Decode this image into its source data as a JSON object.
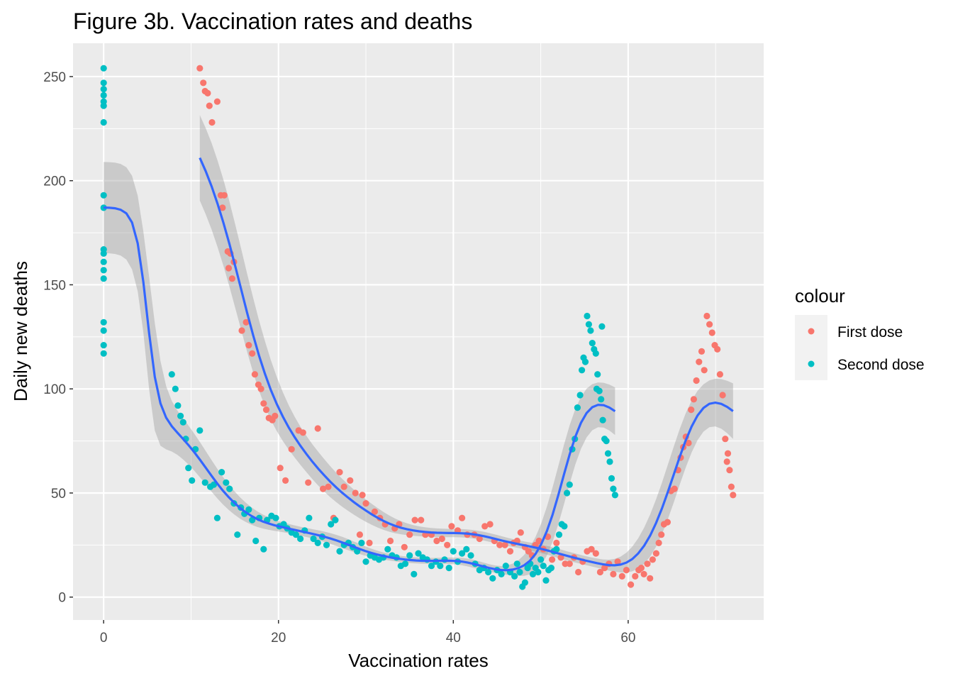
{
  "chart_data": {
    "type": "scatter",
    "title": "Figure 3b. Vaccination rates and deaths",
    "xlabel": "Vaccination rates",
    "ylabel": "Daily new deaths",
    "xlim": [
      -3.5,
      75.5
    ],
    "ylim": [
      -11,
      266
    ],
    "x_ticks": [
      0,
      20,
      40,
      60
    ],
    "y_ticks": [
      0,
      50,
      100,
      150,
      200,
      250
    ],
    "grid": true,
    "background": "#ebebeb",
    "legend": {
      "title": "colour",
      "placement": "right",
      "entries": [
        "First dose",
        "Second dose"
      ]
    },
    "series": [
      {
        "name": "First dose",
        "color": "#f8766d",
        "points": [
          [
            11.0,
            254
          ],
          [
            11.4,
            247
          ],
          [
            11.6,
            243
          ],
          [
            11.9,
            242
          ],
          [
            12.1,
            236
          ],
          [
            12.4,
            228
          ],
          [
            13.0,
            238
          ],
          [
            13.4,
            193
          ],
          [
            13.8,
            193
          ],
          [
            13.6,
            187
          ],
          [
            14.2,
            166
          ],
          [
            14.5,
            165
          ],
          [
            14.3,
            158
          ],
          [
            14.9,
            161
          ],
          [
            14.7,
            153
          ],
          [
            15.8,
            128
          ],
          [
            16.3,
            132
          ],
          [
            16.6,
            121
          ],
          [
            17.0,
            117
          ],
          [
            17.3,
            107
          ],
          [
            17.7,
            102
          ],
          [
            18.0,
            100
          ],
          [
            18.3,
            93
          ],
          [
            18.6,
            90
          ],
          [
            18.9,
            86
          ],
          [
            19.3,
            85
          ],
          [
            19.6,
            87
          ],
          [
            20.2,
            62
          ],
          [
            20.8,
            56
          ],
          [
            21.5,
            71
          ],
          [
            22.3,
            80
          ],
          [
            22.8,
            79
          ],
          [
            23.4,
            55
          ],
          [
            24.5,
            81
          ],
          [
            25.1,
            52
          ],
          [
            25.7,
            53
          ],
          [
            26.3,
            38
          ],
          [
            27.0,
            60
          ],
          [
            27.5,
            53
          ],
          [
            28.2,
            56
          ],
          [
            28.8,
            50
          ],
          [
            29.3,
            30
          ],
          [
            29.6,
            49
          ],
          [
            30.0,
            45
          ],
          [
            30.4,
            26
          ],
          [
            31.0,
            41
          ],
          [
            31.6,
            38
          ],
          [
            32.2,
            35
          ],
          [
            32.8,
            27
          ],
          [
            33.3,
            33
          ],
          [
            33.8,
            35
          ],
          [
            34.4,
            24
          ],
          [
            35.0,
            30
          ],
          [
            35.6,
            37
          ],
          [
            36.3,
            37
          ],
          [
            36.8,
            30
          ],
          [
            37.5,
            30
          ],
          [
            38.1,
            27
          ],
          [
            38.7,
            28
          ],
          [
            39.3,
            25
          ],
          [
            39.8,
            34
          ],
          [
            40.5,
            32
          ],
          [
            41.0,
            38
          ],
          [
            41.6,
            30
          ],
          [
            42.4,
            30
          ],
          [
            43.0,
            28
          ],
          [
            43.6,
            34
          ],
          [
            44.2,
            35
          ],
          [
            44.7,
            27
          ],
          [
            45.3,
            25
          ],
          [
            45.9,
            25
          ],
          [
            46.5,
            22
          ],
          [
            46.9,
            26
          ],
          [
            47.3,
            27
          ],
          [
            47.7,
            31
          ],
          [
            48.2,
            24
          ],
          [
            48.6,
            22
          ],
          [
            49.0,
            20
          ],
          [
            49.4,
            25
          ],
          [
            49.8,
            27
          ],
          [
            50.3,
            23
          ],
          [
            50.8,
            29
          ],
          [
            51.3,
            18
          ],
          [
            51.8,
            26
          ],
          [
            52.3,
            19
          ],
          [
            52.8,
            16
          ],
          [
            53.3,
            16
          ],
          [
            53.8,
            19
          ],
          [
            54.3,
            12
          ],
          [
            54.8,
            17
          ],
          [
            55.3,
            22
          ],
          [
            55.8,
            23
          ],
          [
            56.3,
            21
          ],
          [
            56.8,
            12
          ],
          [
            57.3,
            14
          ],
          [
            57.8,
            16
          ],
          [
            58.3,
            11
          ],
          [
            58.8,
            17
          ],
          [
            59.3,
            10
          ],
          [
            59.8,
            13
          ],
          [
            60.3,
            6
          ],
          [
            60.8,
            10
          ],
          [
            61.2,
            13
          ],
          [
            61.5,
            14
          ],
          [
            61.8,
            11
          ],
          [
            62.2,
            16
          ],
          [
            62.5,
            9
          ],
          [
            62.8,
            18
          ],
          [
            63.2,
            21
          ],
          [
            63.5,
            26
          ],
          [
            63.8,
            30
          ],
          [
            64.1,
            35
          ],
          [
            64.5,
            36
          ],
          [
            64.9,
            51
          ],
          [
            65.3,
            52
          ],
          [
            65.7,
            61
          ],
          [
            66.0,
            67
          ],
          [
            66.3,
            72
          ],
          [
            66.6,
            77
          ],
          [
            66.9,
            74
          ],
          [
            67.2,
            90
          ],
          [
            67.5,
            95
          ],
          [
            67.8,
            104
          ],
          [
            68.1,
            113
          ],
          [
            68.4,
            118
          ],
          [
            68.7,
            109
          ],
          [
            69.0,
            135
          ],
          [
            69.3,
            131
          ],
          [
            69.6,
            127
          ],
          [
            69.9,
            121
          ],
          [
            70.2,
            119
          ],
          [
            70.5,
            107
          ],
          [
            70.8,
            97
          ],
          [
            71.1,
            76
          ],
          [
            71.4,
            69
          ],
          [
            71.6,
            61
          ],
          [
            71.8,
            53
          ],
          [
            72.0,
            49
          ],
          [
            71.3,
            65
          ]
        ]
      },
      {
        "name": "Second dose",
        "color": "#00bfc4",
        "points": [
          [
            0,
            254
          ],
          [
            0,
            247
          ],
          [
            0,
            244
          ],
          [
            0,
            241
          ],
          [
            0,
            238
          ],
          [
            0,
            236
          ],
          [
            0,
            228
          ],
          [
            0,
            193
          ],
          [
            0,
            187
          ],
          [
            0,
            167
          ],
          [
            0,
            165
          ],
          [
            0,
            161
          ],
          [
            0,
            157
          ],
          [
            0,
            153
          ],
          [
            0,
            132
          ],
          [
            0,
            128
          ],
          [
            0,
            121
          ],
          [
            0,
            117
          ],
          [
            7.8,
            107
          ],
          [
            8.2,
            100
          ],
          [
            8.5,
            92
          ],
          [
            8.8,
            87
          ],
          [
            9.1,
            84
          ],
          [
            9.4,
            76
          ],
          [
            9.7,
            62
          ],
          [
            10.1,
            56
          ],
          [
            10.5,
            71
          ],
          [
            11.0,
            80
          ],
          [
            11.6,
            55
          ],
          [
            12.2,
            53
          ],
          [
            12.6,
            54
          ],
          [
            13.0,
            38
          ],
          [
            13.5,
            60
          ],
          [
            14.0,
            55
          ],
          [
            14.4,
            52
          ],
          [
            14.9,
            45
          ],
          [
            15.3,
            30
          ],
          [
            15.7,
            43
          ],
          [
            16.1,
            40
          ],
          [
            16.6,
            42
          ],
          [
            17.0,
            37
          ],
          [
            17.4,
            27
          ],
          [
            17.8,
            38
          ],
          [
            18.3,
            23
          ],
          [
            18.7,
            37
          ],
          [
            19.2,
            39
          ],
          [
            19.7,
            38
          ],
          [
            20.1,
            34
          ],
          [
            20.6,
            35
          ],
          [
            21.0,
            33
          ],
          [
            21.5,
            31
          ],
          [
            22.0,
            30
          ],
          [
            22.5,
            28
          ],
          [
            23.0,
            32
          ],
          [
            23.5,
            38
          ],
          [
            24.0,
            28
          ],
          [
            24.5,
            26
          ],
          [
            25.0,
            29
          ],
          [
            25.5,
            25
          ],
          [
            26.0,
            35
          ],
          [
            26.5,
            37
          ],
          [
            27.0,
            22
          ],
          [
            27.5,
            25
          ],
          [
            28.0,
            26
          ],
          [
            28.5,
            24
          ],
          [
            29.0,
            22
          ],
          [
            29.5,
            26
          ],
          [
            30.0,
            17
          ],
          [
            30.5,
            20
          ],
          [
            31.0,
            19
          ],
          [
            31.5,
            18
          ],
          [
            32.0,
            19
          ],
          [
            32.5,
            23
          ],
          [
            33.0,
            20
          ],
          [
            33.5,
            19
          ],
          [
            34.0,
            15
          ],
          [
            34.5,
            16
          ],
          [
            35.0,
            20
          ],
          [
            35.5,
            11
          ],
          [
            36.0,
            21
          ],
          [
            36.5,
            19
          ],
          [
            37.0,
            18
          ],
          [
            37.5,
            15
          ],
          [
            38.0,
            17
          ],
          [
            38.5,
            15
          ],
          [
            39.0,
            18
          ],
          [
            39.5,
            14
          ],
          [
            40.0,
            22
          ],
          [
            40.5,
            17
          ],
          [
            41.0,
            21
          ],
          [
            41.5,
            23
          ],
          [
            42.0,
            20
          ],
          [
            42.5,
            16
          ],
          [
            43.0,
            13
          ],
          [
            43.5,
            14
          ],
          [
            44.0,
            12
          ],
          [
            44.5,
            9
          ],
          [
            45.0,
            13
          ],
          [
            45.5,
            11
          ],
          [
            46.0,
            15
          ],
          [
            46.5,
            12
          ],
          [
            47.0,
            10
          ],
          [
            47.3,
            16
          ],
          [
            47.6,
            12
          ],
          [
            47.9,
            5
          ],
          [
            48.2,
            7
          ],
          [
            48.5,
            14
          ],
          [
            48.8,
            16
          ],
          [
            49.1,
            11
          ],
          [
            49.4,
            14
          ],
          [
            49.7,
            12
          ],
          [
            50.0,
            18
          ],
          [
            50.3,
            15
          ],
          [
            50.6,
            8
          ],
          [
            50.9,
            13
          ],
          [
            51.2,
            14
          ],
          [
            51.5,
            22
          ],
          [
            51.8,
            23
          ],
          [
            52.1,
            30
          ],
          [
            52.4,
            35
          ],
          [
            52.7,
            34
          ],
          [
            53.0,
            50
          ],
          [
            53.3,
            54
          ],
          [
            53.6,
            71
          ],
          [
            53.9,
            76
          ],
          [
            54.2,
            91
          ],
          [
            54.5,
            97
          ],
          [
            54.7,
            109
          ],
          [
            54.9,
            115
          ],
          [
            55.1,
            113
          ],
          [
            55.3,
            135
          ],
          [
            55.5,
            131
          ],
          [
            55.7,
            128
          ],
          [
            55.9,
            122
          ],
          [
            56.1,
            119
          ],
          [
            56.3,
            117
          ],
          [
            56.5,
            107
          ],
          [
            56.7,
            99
          ],
          [
            56.9,
            95
          ],
          [
            57.1,
            85
          ],
          [
            57.3,
            76
          ],
          [
            57.5,
            75
          ],
          [
            57.7,
            69
          ],
          [
            57.9,
            65
          ],
          [
            58.1,
            57
          ],
          [
            58.3,
            52
          ],
          [
            58.5,
            49
          ],
          [
            57.0,
            130
          ],
          [
            56.4,
            100
          ]
        ]
      }
    ]
  }
}
